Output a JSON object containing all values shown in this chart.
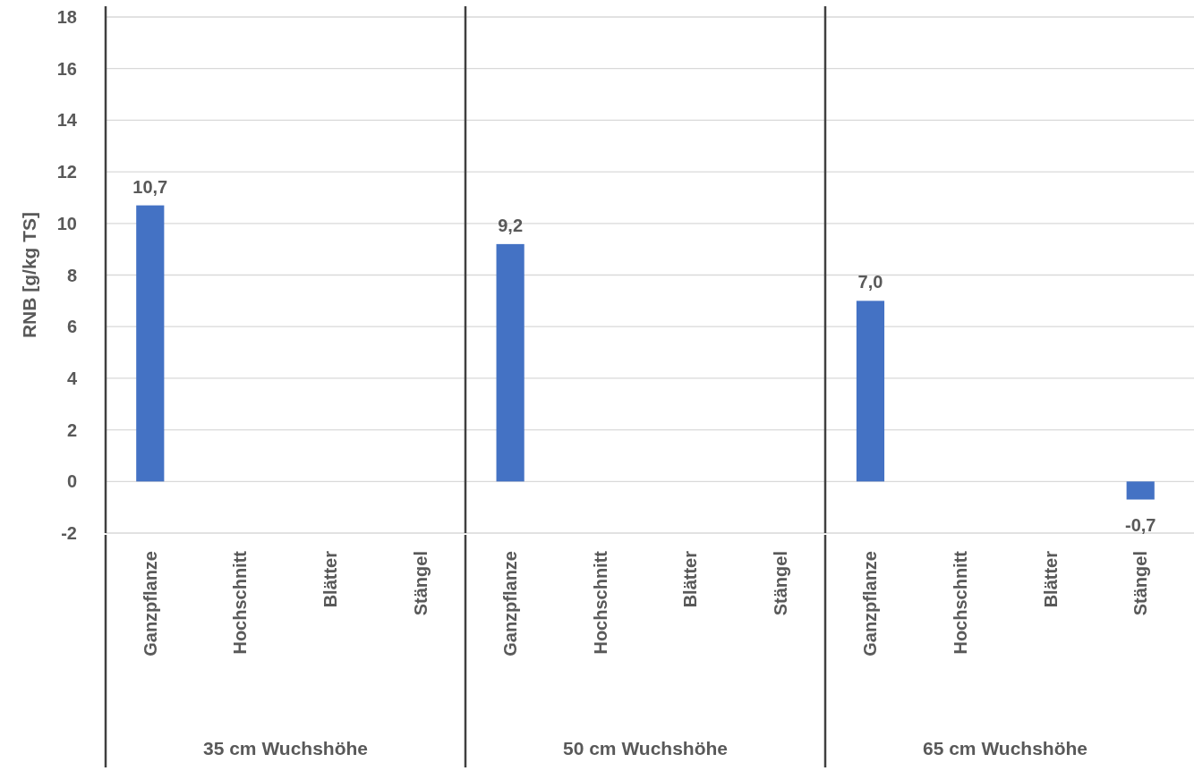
{
  "chart_data": {
    "type": "bar",
    "ylabel": "RNB  [g/kg TS]",
    "categories": [
      "Ganzpflanze",
      "Hochschnitt",
      "Blätter",
      "Stängel",
      "Ganzpflanze",
      "Hochschnitt",
      "Blätter",
      "Stängel",
      "Ganzpflanze",
      "Hochschnitt",
      "Blätter",
      "Stängel"
    ],
    "values": [
      10.7,
      null,
      null,
      null,
      9.2,
      null,
      null,
      null,
      7.0,
      null,
      null,
      -0.7
    ],
    "value_labels": [
      "10,7",
      null,
      null,
      null,
      "9,2",
      null,
      null,
      null,
      "7,0",
      null,
      null,
      "-0,7"
    ],
    "color": "#4472c4",
    "ylim": [
      -2,
      18
    ],
    "yticks": [
      -2,
      0,
      2,
      4,
      6,
      8,
      10,
      12,
      14,
      16,
      18
    ],
    "grid": "y",
    "annotations": [
      "35 cm Wuchshöhe",
      "50 cm Wuchshöhe",
      "65 cm Wuchshöhe"
    ]
  }
}
